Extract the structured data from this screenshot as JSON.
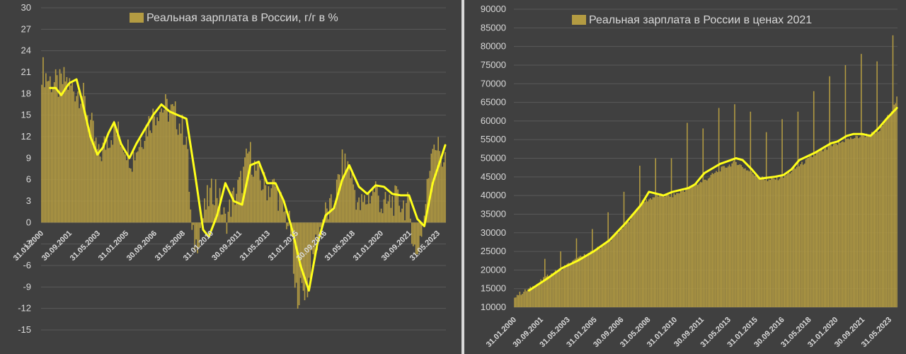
{
  "colors": {
    "background": "#404040",
    "bar": "#b39b42",
    "line": "#ffff1a",
    "grid": "#595959",
    "text": "#d9d9d9"
  },
  "chart_data": [
    {
      "type": "bar",
      "legend": "Реальная зарплата в России, г/г в %",
      "legend_position": "top",
      "ylim": [
        -15,
        30
      ],
      "yticks": [
        -15,
        -12,
        -9,
        -6,
        -3,
        0,
        3,
        6,
        9,
        12,
        15,
        18,
        21,
        24,
        27,
        30
      ],
      "xtick_labels": [
        "31.01.2000",
        "30.09.2001",
        "31.05.2003",
        "31.01.2005",
        "30.09.2006",
        "31.05.2008",
        "31.01.2010",
        "30.09.2011",
        "31.05.2013",
        "31.01.2015",
        "30.09.2016",
        "31.05.2018",
        "31.01.2020",
        "30.09.2021",
        "31.05.2023"
      ],
      "grid": true,
      "x_range": [
        "2000-01",
        "2024-03"
      ],
      "bar_series_anchors": [
        {
          "date": "2000-01",
          "value": 21.5
        },
        {
          "date": "2000-06",
          "value": 20
        },
        {
          "date": "2001-01",
          "value": 19
        },
        {
          "date": "2001-06",
          "value": 20
        },
        {
          "date": "2001-09",
          "value": 19
        },
        {
          "date": "2002-06",
          "value": 18
        },
        {
          "date": "2002-12",
          "value": 14
        },
        {
          "date": "2003-06",
          "value": 9
        },
        {
          "date": "2004-01",
          "value": 12
        },
        {
          "date": "2004-06",
          "value": 13
        },
        {
          "date": "2005-01",
          "value": 11
        },
        {
          "date": "2005-06",
          "value": 9
        },
        {
          "date": "2006-01",
          "value": 12
        },
        {
          "date": "2006-06",
          "value": 14
        },
        {
          "date": "2007-01",
          "value": 16
        },
        {
          "date": "2007-06",
          "value": 16
        },
        {
          "date": "2008-01",
          "value": 15
        },
        {
          "date": "2008-09",
          "value": 12
        },
        {
          "date": "2009-01",
          "value": -2
        },
        {
          "date": "2009-04",
          "value": -3
        },
        {
          "date": "2009-12",
          "value": 3
        },
        {
          "date": "2010-06",
          "value": 5
        },
        {
          "date": "2011-01",
          "value": 0
        },
        {
          "date": "2011-06",
          "value": 3
        },
        {
          "date": "2012-01",
          "value": 6
        },
        {
          "date": "2012-06",
          "value": 10
        },
        {
          "date": "2013-01",
          "value": 6
        },
        {
          "date": "2013-06",
          "value": 5
        },
        {
          "date": "2014-01",
          "value": 5
        },
        {
          "date": "2014-06",
          "value": 2
        },
        {
          "date": "2014-12",
          "value": -1
        },
        {
          "date": "2015-03",
          "value": -10
        },
        {
          "date": "2015-12",
          "value": -9
        },
        {
          "date": "2016-06",
          "value": -3
        },
        {
          "date": "2016-12",
          "value": 1
        },
        {
          "date": "2017-06",
          "value": 2
        },
        {
          "date": "2018-01",
          "value": 8
        },
        {
          "date": "2018-06",
          "value": 8
        },
        {
          "date": "2019-01",
          "value": 2
        },
        {
          "date": "2019-06",
          "value": 3
        },
        {
          "date": "2020-01",
          "value": 5
        },
        {
          "date": "2020-06",
          "value": 2
        },
        {
          "date": "2021-01",
          "value": 3
        },
        {
          "date": "2021-06",
          "value": 3
        },
        {
          "date": "2022-01",
          "value": 2
        },
        {
          "date": "2022-06",
          "value": -5
        },
        {
          "date": "2022-12",
          "value": 1
        },
        {
          "date": "2023-06",
          "value": 12
        },
        {
          "date": "2024-01",
          "value": 9
        },
        {
          "date": "2024-03",
          "value": 9
        }
      ],
      "line_series": [
        {
          "date": "2000-07",
          "value": 18.8
        },
        {
          "date": "2000-11",
          "value": 18.8
        },
        {
          "date": "2001-03",
          "value": 17.8
        },
        {
          "date": "2001-07",
          "value": 19
        },
        {
          "date": "2001-09",
          "value": 19.5
        },
        {
          "date": "2002-02",
          "value": 20
        },
        {
          "date": "2002-06",
          "value": 17
        },
        {
          "date": "2002-12",
          "value": 12
        },
        {
          "date": "2003-05",
          "value": 9.5
        },
        {
          "date": "2003-09",
          "value": 10.5
        },
        {
          "date": "2004-01",
          "value": 12.5
        },
        {
          "date": "2004-05",
          "value": 14
        },
        {
          "date": "2004-10",
          "value": 11
        },
        {
          "date": "2005-04",
          "value": 9
        },
        {
          "date": "2005-09",
          "value": 11
        },
        {
          "date": "2006-03",
          "value": 13
        },
        {
          "date": "2006-09",
          "value": 15
        },
        {
          "date": "2007-03",
          "value": 16.5
        },
        {
          "date": "2007-09",
          "value": 15.5
        },
        {
          "date": "2008-03",
          "value": 15
        },
        {
          "date": "2008-09",
          "value": 14.5
        },
        {
          "date": "2009-03",
          "value": 7
        },
        {
          "date": "2009-09",
          "value": -1
        },
        {
          "date": "2010-01",
          "value": -2
        },
        {
          "date": "2010-07",
          "value": 1
        },
        {
          "date": "2011-01",
          "value": 5.5
        },
        {
          "date": "2011-07",
          "value": 3
        },
        {
          "date": "2012-01",
          "value": 2.5
        },
        {
          "date": "2012-07",
          "value": 8
        },
        {
          "date": "2013-01",
          "value": 8.5
        },
        {
          "date": "2013-07",
          "value": 5.5
        },
        {
          "date": "2014-01",
          "value": 5.5
        },
        {
          "date": "2014-07",
          "value": 3
        },
        {
          "date": "2015-01",
          "value": -1
        },
        {
          "date": "2015-07",
          "value": -6
        },
        {
          "date": "2016-01",
          "value": -9.5
        },
        {
          "date": "2016-07",
          "value": -3
        },
        {
          "date": "2017-01",
          "value": 1
        },
        {
          "date": "2017-07",
          "value": 2
        },
        {
          "date": "2018-01",
          "value": 6
        },
        {
          "date": "2018-06",
          "value": 8
        },
        {
          "date": "2019-01",
          "value": 5
        },
        {
          "date": "2019-07",
          "value": 4
        },
        {
          "date": "2020-01",
          "value": 5.2
        },
        {
          "date": "2020-07",
          "value": 5
        },
        {
          "date": "2021-01",
          "value": 4
        },
        {
          "date": "2021-07",
          "value": 3.8
        },
        {
          "date": "2022-01",
          "value": 3.8
        },
        {
          "date": "2022-07",
          "value": 0.5
        },
        {
          "date": "2022-12",
          "value": -0.5
        },
        {
          "date": "2023-06",
          "value": 5.5
        },
        {
          "date": "2023-12",
          "value": 9
        },
        {
          "date": "2024-03",
          "value": 10.8
        }
      ]
    },
    {
      "type": "bar",
      "legend": "Реальная зарплата в России в ценах 2021",
      "legend_position": "top",
      "ylim": [
        10000,
        90000
      ],
      "yticks": [
        10000,
        15000,
        20000,
        25000,
        30000,
        35000,
        40000,
        45000,
        50000,
        55000,
        60000,
        65000,
        70000,
        75000,
        80000,
        85000,
        90000
      ],
      "xtick_labels": [
        "31.01.2000",
        "30.09.2001",
        "31.05.2003",
        "31.01.2005",
        "30.09.2006",
        "31.05.2008",
        "31.01.2010",
        "30.09.2011",
        "31.05.2013",
        "31.01.2015",
        "30.09.2016",
        "31.05.2018",
        "31.01.2020",
        "30.09.2021",
        "31.05.2023"
      ],
      "grid": true,
      "x_range": [
        "2000-01",
        "2024-03"
      ],
      "bar_series_anchors": [
        {
          "date": "2000-01",
          "value": 13000
        },
        {
          "date": "2001-01",
          "value": 15000
        },
        {
          "date": "2002-01",
          "value": 18000
        },
        {
          "date": "2003-01",
          "value": 20500
        },
        {
          "date": "2004-01",
          "value": 23000
        },
        {
          "date": "2005-01",
          "value": 25000
        },
        {
          "date": "2006-01",
          "value": 28000
        },
        {
          "date": "2007-01",
          "value": 32000
        },
        {
          "date": "2008-01",
          "value": 38000
        },
        {
          "date": "2009-01",
          "value": 40000
        },
        {
          "date": "2010-01",
          "value": 40000
        },
        {
          "date": "2011-01",
          "value": 42000
        },
        {
          "date": "2012-01",
          "value": 44000
        },
        {
          "date": "2013-01",
          "value": 47000
        },
        {
          "date": "2014-01",
          "value": 49000
        },
        {
          "date": "2015-01",
          "value": 46000
        },
        {
          "date": "2016-01",
          "value": 44000
        },
        {
          "date": "2017-01",
          "value": 45000
        },
        {
          "date": "2018-01",
          "value": 48000
        },
        {
          "date": "2019-01",
          "value": 51000
        },
        {
          "date": "2020-01",
          "value": 53000
        },
        {
          "date": "2021-01",
          "value": 55000
        },
        {
          "date": "2022-01",
          "value": 56000
        },
        {
          "date": "2023-01",
          "value": 57000
        },
        {
          "date": "2024-01",
          "value": 64000
        },
        {
          "date": "2024-03",
          "value": 66000
        }
      ],
      "bar_spikes": [
        {
          "date": "2001-12",
          "value": 23000
        },
        {
          "date": "2002-12",
          "value": 25000
        },
        {
          "date": "2003-12",
          "value": 28500
        },
        {
          "date": "2004-12",
          "value": 31000
        },
        {
          "date": "2005-12",
          "value": 35500
        },
        {
          "date": "2006-12",
          "value": 41000
        },
        {
          "date": "2007-12",
          "value": 48000
        },
        {
          "date": "2008-12",
          "value": 50000
        },
        {
          "date": "2009-12",
          "value": 50000
        },
        {
          "date": "2010-12",
          "value": 59500
        },
        {
          "date": "2011-12",
          "value": 58000
        },
        {
          "date": "2012-12",
          "value": 63500
        },
        {
          "date": "2013-12",
          "value": 64500
        },
        {
          "date": "2014-12",
          "value": 62500
        },
        {
          "date": "2015-12",
          "value": 57000
        },
        {
          "date": "2016-12",
          "value": 60500
        },
        {
          "date": "2017-12",
          "value": 62500
        },
        {
          "date": "2018-12",
          "value": 68000
        },
        {
          "date": "2019-12",
          "value": 72000
        },
        {
          "date": "2020-12",
          "value": 75000
        },
        {
          "date": "2021-12",
          "value": 78000
        },
        {
          "date": "2022-12",
          "value": 76000
        },
        {
          "date": "2023-12",
          "value": 83000
        }
      ],
      "line_series": [
        {
          "date": "2000-12",
          "value": 14500
        },
        {
          "date": "2002-01",
          "value": 17500
        },
        {
          "date": "2003-01",
          "value": 20500
        },
        {
          "date": "2004-01",
          "value": 22500
        },
        {
          "date": "2005-01",
          "value": 25000
        },
        {
          "date": "2006-01",
          "value": 28000
        },
        {
          "date": "2007-01",
          "value": 32500
        },
        {
          "date": "2008-01",
          "value": 37500
        },
        {
          "date": "2008-07",
          "value": 41000
        },
        {
          "date": "2009-06",
          "value": 40000
        },
        {
          "date": "2010-01",
          "value": 41000
        },
        {
          "date": "2011-01",
          "value": 42000
        },
        {
          "date": "2011-06",
          "value": 43000
        },
        {
          "date": "2012-01",
          "value": 46000
        },
        {
          "date": "2013-01",
          "value": 48500
        },
        {
          "date": "2014-01",
          "value": 50000
        },
        {
          "date": "2014-06",
          "value": 49500
        },
        {
          "date": "2015-01",
          "value": 47000
        },
        {
          "date": "2015-07",
          "value": 44500
        },
        {
          "date": "2016-06",
          "value": 45000
        },
        {
          "date": "2017-01",
          "value": 45500
        },
        {
          "date": "2017-07",
          "value": 47000
        },
        {
          "date": "2018-01",
          "value": 49500
        },
        {
          "date": "2019-01",
          "value": 51500
        },
        {
          "date": "2020-01",
          "value": 54000
        },
        {
          "date": "2020-06",
          "value": 54500
        },
        {
          "date": "2021-01",
          "value": 56000
        },
        {
          "date": "2021-06",
          "value": 56500
        },
        {
          "date": "2022-01",
          "value": 56500
        },
        {
          "date": "2022-07",
          "value": 56000
        },
        {
          "date": "2023-01",
          "value": 58000
        },
        {
          "date": "2023-07",
          "value": 60500
        },
        {
          "date": "2024-03",
          "value": 63500
        }
      ]
    }
  ]
}
